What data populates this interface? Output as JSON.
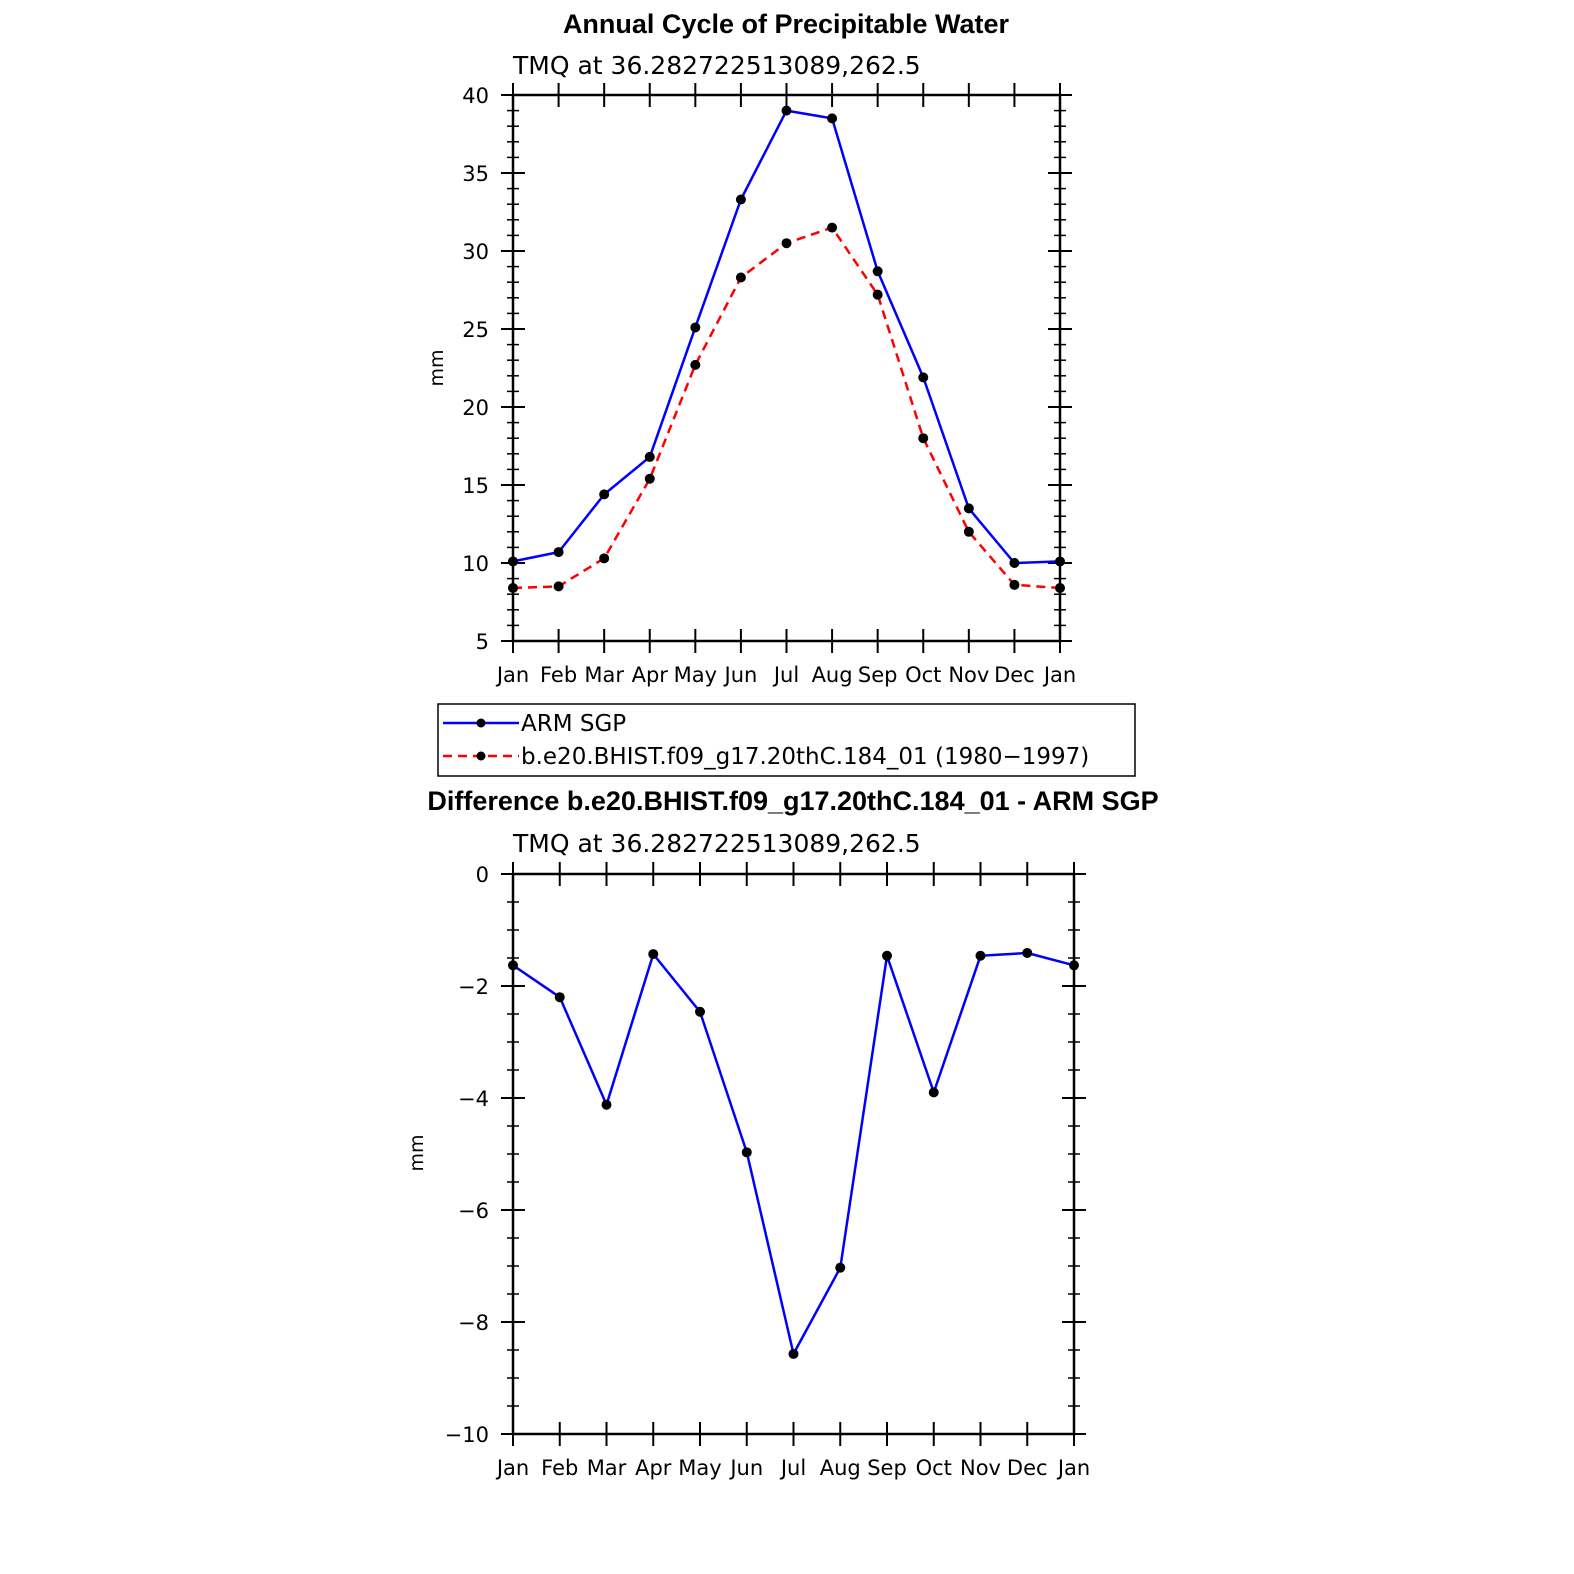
{
  "chart_data": [
    {
      "type": "line",
      "title": "Annual Cycle of Precipitable Water",
      "subtitle": "TMQ at 36.282722513089,262.5",
      "ylabel": "mm",
      "xlabel": "",
      "categories": [
        "Jan",
        "Feb",
        "Mar",
        "Apr",
        "May",
        "Jun",
        "Jul",
        "Aug",
        "Sep",
        "Oct",
        "Nov",
        "Dec",
        "Jan"
      ],
      "ylim": [
        5,
        40
      ],
      "yticks": [
        5,
        10,
        15,
        20,
        25,
        30,
        35,
        40
      ],
      "series": [
        {
          "name": "ARM SGP",
          "color": "#0000ff",
          "dash": "solid",
          "values": [
            10.1,
            10.7,
            14.4,
            16.8,
            25.1,
            33.3,
            39.0,
            38.5,
            28.7,
            21.9,
            13.5,
            10.0,
            10.1
          ]
        },
        {
          "name": "b.e20.BHIST.f09_g17.20thC.184_01 (1980−1997)",
          "color": "#ff0000",
          "dash": "dashed",
          "values": [
            8.4,
            8.5,
            10.3,
            15.4,
            22.7,
            28.3,
            30.5,
            31.5,
            27.2,
            18.0,
            12.0,
            8.6,
            8.4
          ]
        }
      ],
      "legend": "below"
    },
    {
      "type": "line",
      "title": "Difference b.e20.BHIST.f09_g17.20thC.184_01 - ARM SGP",
      "subtitle": "TMQ at 36.282722513089,262.5",
      "ylabel": "mm",
      "xlabel": "",
      "categories": [
        "Jan",
        "Feb",
        "Mar",
        "Apr",
        "May",
        "Jun",
        "Jul",
        "Aug",
        "Sep",
        "Oct",
        "Nov",
        "Dec",
        "Jan"
      ],
      "ylim": [
        -10,
        0
      ],
      "yticks": [
        0,
        -2,
        -4,
        -6,
        -8,
        -10
      ],
      "ytick_labels": [
        "0",
        "−2",
        "−4",
        "−6",
        "−8",
        "−10"
      ],
      "series": [
        {
          "color": "#0000ff",
          "dash": "solid",
          "values": [
            -1.63,
            -2.2,
            -4.12,
            -1.43,
            -2.46,
            -4.97,
            -8.57,
            -7.03,
            -1.46,
            -3.9,
            -1.46,
            -1.41,
            -1.63
          ]
        }
      ]
    }
  ]
}
